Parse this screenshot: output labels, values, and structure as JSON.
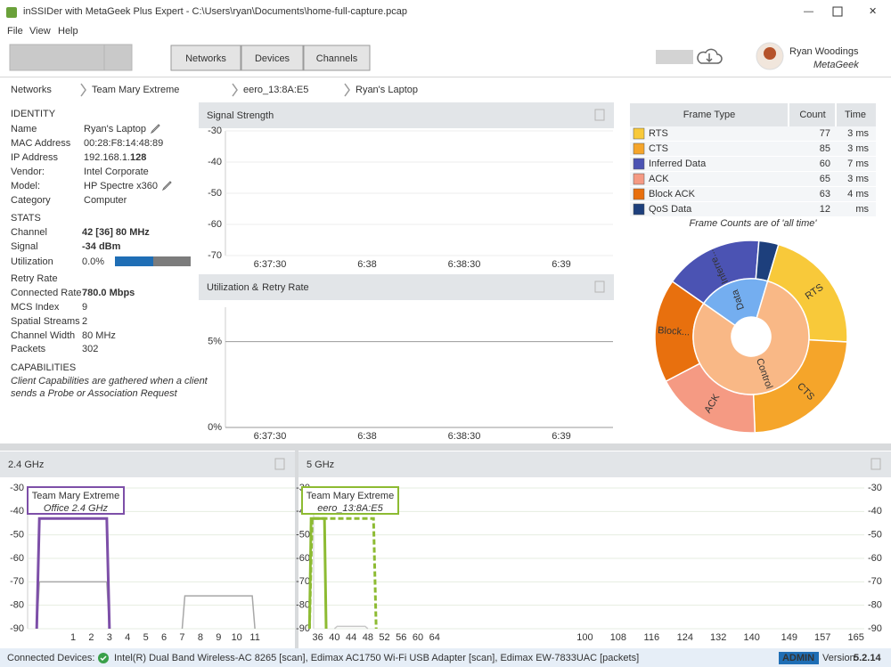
{
  "window": {
    "title": "inSSIDer with MetaGeek Plus Expert - C:\\Users\\ryan\\Documents\\home-full-capture.pcap",
    "menu": [
      "File",
      "View",
      "Help"
    ]
  },
  "toolbar": {
    "tabs": [
      "Networks",
      "Devices",
      "Channels"
    ],
    "user_name": "Ryan Woodings",
    "user_org": "MetaGeek"
  },
  "breadcrumb": [
    "Networks",
    "Team Mary Extreme",
    "eero_13:8A:E5",
    "Ryan's Laptop"
  ],
  "identity": {
    "heading": "IDENTITY",
    "fields": [
      [
        "Name",
        "Ryan's Laptop"
      ],
      [
        "MAC Address",
        "00:28:F8:14:48:89"
      ],
      [
        "IP Address",
        "192.168.1.",
        "128"
      ],
      [
        "Vendor:",
        "Intel Corporate"
      ],
      [
        "Model:",
        "HP Spectre x360"
      ],
      [
        "Category",
        "Computer"
      ]
    ]
  },
  "stats": {
    "heading": "STATS",
    "fields": [
      [
        "Channel",
        "42 [36]   80 MHz"
      ],
      [
        "Signal",
        "-34 dBm"
      ],
      [
        "Utilization",
        "0.0%"
      ],
      [
        "Retry Rate"
      ],
      [
        "Connected Rate",
        "780.0 Mbps"
      ],
      [
        "MCS Index",
        "9"
      ],
      [
        "Spatial Streams",
        "2"
      ],
      [
        "Channel Width",
        "80 MHz"
      ],
      [
        "Packets",
        "302"
      ]
    ]
  },
  "capabilities": {
    "heading": "CAPABILITIES",
    "note_lines": [
      "Client Capabilities are gathered when a client",
      "sends a Probe or Association Request"
    ]
  },
  "signal_chart": {
    "type": "line",
    "title": "Signal Strength",
    "ylim": [
      -70,
      -30
    ],
    "yticks": [
      -30,
      -40,
      -50,
      -60,
      -70
    ],
    "xtick_labels": [
      "6:37:30",
      "6:38",
      "6:38:30",
      "6:39"
    ]
  },
  "utilization_chart": {
    "type": "line",
    "title_parts": [
      "Utilization &",
      "Retry Rate"
    ],
    "ylim": [
      0,
      7
    ],
    "yticks": [
      {
        "value": 5,
        "label": "5%"
      },
      {
        "value": 0,
        "label": "0%"
      }
    ],
    "xtick_labels": [
      "6:37:30",
      "6:38",
      "6:38:30",
      "6:39"
    ]
  },
  "frame_table": {
    "columns": [
      "Frame Type",
      "Count",
      "Time"
    ],
    "rows": [
      {
        "name": "RTS",
        "color": "#f8c93a",
        "count": 77,
        "time": "3 ms"
      },
      {
        "name": "CTS",
        "color": "#f5a52a",
        "count": 85,
        "time": "3 ms"
      },
      {
        "name": "Inferred Data",
        "color": "#4b53b3",
        "count": 60,
        "time": "7 ms"
      },
      {
        "name": "ACK",
        "color": "#f59a83",
        "count": 65,
        "time": "3 ms"
      },
      {
        "name": "Block ACK",
        "color": "#e8700e",
        "count": 63,
        "time": "4 ms"
      },
      {
        "name": "QoS Data",
        "color": "#1d3f7c",
        "count": 12,
        "time": "ms"
      }
    ],
    "note": "Frame Counts are of 'all time'"
  },
  "sunburst": {
    "type": "sunburst",
    "groups": [
      {
        "label": "Data",
        "color": "#74aef0",
        "segments": [
          {
            "row": 2,
            "label": "Inferre..."
          },
          {
            "row": 5,
            "label": null
          }
        ]
      },
      {
        "label": "Control",
        "color": "#f9b886",
        "segments": [
          {
            "row": 0,
            "label": "RTS"
          },
          {
            "row": 1,
            "label": "CTS"
          },
          {
            "row": 3,
            "label": "ACK"
          },
          {
            "row": 4,
            "label": "Block..."
          }
        ]
      }
    ]
  },
  "band_24": {
    "type": "area",
    "title": "2.4 GHz",
    "xlim": [
      -1.5,
      13.2
    ],
    "xticks": [
      1,
      2,
      3,
      4,
      5,
      6,
      7,
      8,
      9,
      10,
      11
    ],
    "ylim": [
      -90,
      -30
    ],
    "yticks": [
      -30,
      -40,
      -50,
      -60,
      -70,
      -80,
      -90
    ],
    "ytick_colors": [
      "#5aa02c",
      "#5aa02c",
      "#5aa02c",
      "#5aa02c",
      "#9aa61a",
      "#e08a1a",
      "#d9332b"
    ],
    "networks": [
      {
        "channel_start": -1,
        "channel_end": 3,
        "signal": -70,
        "color": "#a8a8a8",
        "dashed": false
      },
      {
        "channel_start": 7,
        "channel_end": 11,
        "signal": -76,
        "color": "#a8a8a8",
        "dashed": false
      },
      {
        "channel_start": -1,
        "channel_end": 3,
        "signal": -43,
        "color": "#7d4fa8",
        "dashed": false
      }
    ],
    "label_box": {
      "ssid": "Team Mary Extreme",
      "subtitle": "Office 2.4 GHz"
    }
  },
  "band_5": {
    "type": "area",
    "title": "5 GHz",
    "xlim": [
      35,
      167
    ],
    "xbreak": [
      66,
      98
    ],
    "xticks": [
      36,
      40,
      44,
      48,
      52,
      56,
      60,
      64,
      100,
      108,
      116,
      124,
      132,
      140,
      149,
      157,
      165
    ],
    "ylim": [
      -90,
      -30
    ],
    "yticks": [
      -30,
      -40,
      -50,
      -60,
      -70,
      -80,
      -90
    ],
    "ytick_colors": [
      "#5aa02c",
      "#5aa02c",
      "#5aa02c",
      "#5aa02c",
      "#9aa61a",
      "#e08a1a",
      "#d9332b"
    ],
    "networks": [
      {
        "channel_start": 40,
        "channel_end": 48,
        "signal": -89,
        "color": "#c8c8c8",
        "dashed": false
      },
      {
        "channel_start": 34,
        "channel_end": 50,
        "signal": -43,
        "color": "#8dbb32",
        "dashed": true
      },
      {
        "channel_start": 34,
        "channel_end": 38,
        "signal": -43,
        "color": "#8dbb32",
        "dashed": false
      }
    ],
    "label_box": {
      "ssid": "Team Mary Extreme",
      "subtitle": "eero_13:8A:E5"
    }
  },
  "status": {
    "label": "Connected Devices:",
    "devices": "Intel(R) Dual Band Wireless-AC 8265 [scan], Edimax AC1750 Wi-Fi USB Adapter [scan], Edimax EW-7833UAC [packets]",
    "role": "ADMIN",
    "version_label": "Version",
    "version": "5.2.14"
  }
}
